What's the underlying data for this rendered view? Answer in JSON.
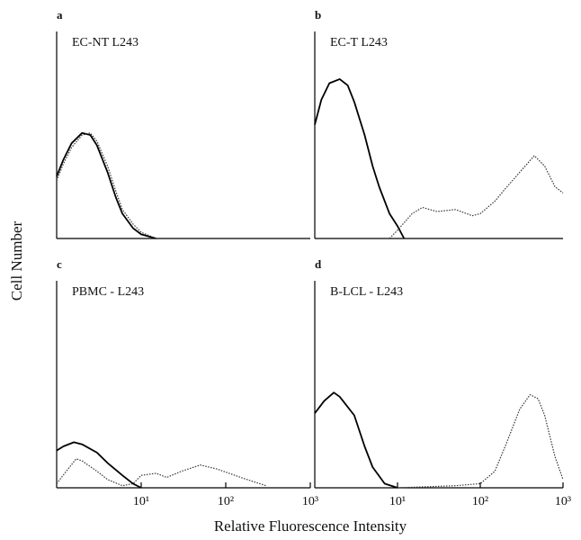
{
  "figure": {
    "xlabel": "Relative Fluorescence Intensity",
    "ylabel": "Cell Number"
  },
  "chart_data": [
    {
      "type": "line",
      "panel": "a",
      "title": "EC-NT L243",
      "xscale": "log",
      "xlim": [
        1,
        1000
      ],
      "ylim": [
        0,
        100
      ],
      "series": [
        {
          "style": "solid",
          "color": "#000000",
          "x": [
            1,
            1.2,
            1.5,
            2,
            2.5,
            3,
            4,
            5,
            6,
            8,
            10,
            15
          ],
          "values": [
            30,
            38,
            46,
            51,
            50,
            45,
            32,
            20,
            12,
            5,
            2,
            0
          ]
        },
        {
          "style": "dotted",
          "color": "#333333",
          "x": [
            1,
            1.2,
            1.5,
            2,
            2.5,
            3,
            4,
            5,
            6,
            8,
            10,
            15
          ],
          "values": [
            28,
            36,
            44,
            50,
            51,
            47,
            35,
            23,
            14,
            7,
            3,
            0
          ]
        }
      ]
    },
    {
      "type": "line",
      "panel": "b",
      "title": "EC-T L243",
      "xscale": "log",
      "xlim": [
        1,
        1000
      ],
      "ylim": [
        0,
        100
      ],
      "series": [
        {
          "style": "solid",
          "color": "#000000",
          "x": [
            1,
            1.2,
            1.5,
            2,
            2.5,
            3,
            4,
            5,
            6,
            8,
            10,
            12
          ],
          "values": [
            55,
            67,
            75,
            77,
            74,
            66,
            50,
            35,
            25,
            12,
            6,
            0
          ]
        },
        {
          "style": "dotted",
          "color": "#333333",
          "x": [
            8,
            10,
            15,
            20,
            30,
            50,
            80,
            100,
            150,
            200,
            300,
            450,
            600,
            800,
            1000
          ],
          "values": [
            0,
            4,
            12,
            15,
            13,
            14,
            11,
            12,
            18,
            24,
            32,
            40,
            35,
            25,
            22
          ]
        }
      ]
    },
    {
      "type": "line",
      "panel": "c",
      "title": "PBMC - L243",
      "xscale": "log",
      "xlim": [
        1,
        1000
      ],
      "ylim": [
        0,
        100
      ],
      "xticks": [
        {
          "value": 10,
          "label": "10¹"
        },
        {
          "value": 100,
          "label": "10²"
        },
        {
          "value": 1000,
          "label": "10³"
        }
      ],
      "series": [
        {
          "style": "solid",
          "color": "#000000",
          "x": [
            1,
            1.2,
            1.6,
            2,
            3,
            4,
            6,
            8,
            10
          ],
          "values": [
            18,
            20,
            22,
            21,
            17,
            12,
            6,
            2,
            0
          ]
        },
        {
          "style": "dotted",
          "color": "#333333",
          "x": [
            1,
            1.3,
            1.7,
            2,
            3,
            4,
            6,
            8,
            10,
            15,
            20,
            30,
            50,
            80,
            150,
            300
          ],
          "values": [
            2,
            8,
            14,
            13,
            8,
            4,
            1,
            2,
            6,
            7,
            5,
            8,
            11,
            9,
            5,
            1
          ]
        }
      ]
    },
    {
      "type": "line",
      "panel": "d",
      "title": "B-LCL - L243",
      "xscale": "log",
      "xlim": [
        1,
        1000
      ],
      "ylim": [
        0,
        100
      ],
      "xticks": [
        {
          "value": 10,
          "label": "10¹"
        },
        {
          "value": 100,
          "label": "10²"
        },
        {
          "value": 1000,
          "label": "10³"
        }
      ],
      "series": [
        {
          "style": "solid",
          "color": "#000000",
          "x": [
            1,
            1.3,
            1.7,
            2,
            3,
            4,
            5,
            7,
            10
          ],
          "values": [
            36,
            42,
            46,
            44,
            35,
            20,
            10,
            2,
            0
          ]
        },
        {
          "style": "dotted",
          "color": "#333333",
          "x": [
            10,
            50,
            100,
            150,
            200,
            300,
            400,
            500,
            600,
            800,
            1000
          ],
          "values": [
            0,
            1,
            2,
            8,
            20,
            38,
            45,
            43,
            35,
            15,
            4
          ]
        }
      ]
    }
  ]
}
